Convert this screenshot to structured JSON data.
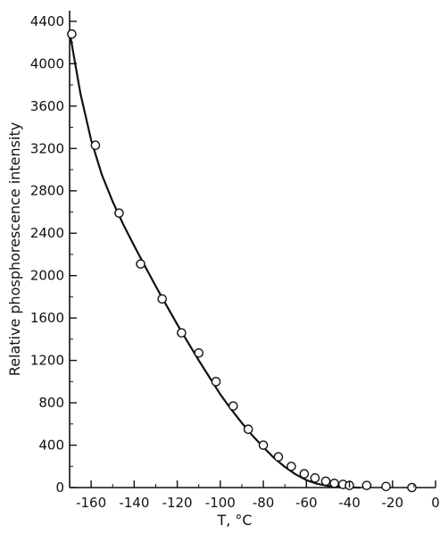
{
  "chart_data": {
    "type": "scatter",
    "title": "",
    "xlabel": "T, °C",
    "ylabel": "Relative phosphorescence intensity",
    "xlim": [
      -170,
      0
    ],
    "ylim": [
      0,
      4500
    ],
    "xticks": [
      -160,
      -140,
      -120,
      -100,
      -80,
      -60,
      -40,
      -20,
      0
    ],
    "xtick_labels": [
      "-160",
      "-140",
      "-120",
      "-100",
      "-80",
      "-60",
      "-40",
      "-20",
      "0"
    ],
    "yticks": [
      0,
      400,
      800,
      1200,
      1600,
      2000,
      2400,
      2800,
      3200,
      3600,
      4000,
      4400
    ],
    "ytick_labels": [
      "0",
      "400",
      "800",
      "1200",
      "1600",
      "2000",
      "2400",
      "2800",
      "3200",
      "3600",
      "4000",
      "4400"
    ],
    "grid": false,
    "series": [
      {
        "marker": "open-circle",
        "x": [
          -169,
          -158,
          -147,
          -137,
          -127,
          -118,
          -110,
          -102,
          -94,
          -87,
          -80,
          -73,
          -67,
          -61,
          -56,
          -51,
          -47,
          -43,
          -40,
          -32,
          -23,
          -11
        ],
        "y": [
          4280,
          3230,
          2590,
          2110,
          1780,
          1460,
          1270,
          1000,
          770,
          550,
          400,
          290,
          200,
          130,
          90,
          60,
          40,
          30,
          20,
          20,
          10,
          0
        ]
      }
    ],
    "fit_curve": {
      "style": "solid",
      "x": [
        -170,
        -165,
        -160,
        -155,
        -150,
        -145,
        -140,
        -135,
        -130,
        -125,
        -120,
        -115,
        -110,
        -105,
        -100,
        -95,
        -90,
        -85,
        -80,
        -75,
        -70,
        -65,
        -60,
        -55,
        -50,
        -45,
        -40,
        -35
      ],
      "y": [
        4300,
        3720,
        3280,
        2950,
        2700,
        2480,
        2280,
        2090,
        1900,
        1720,
        1540,
        1370,
        1200,
        1040,
        880,
        740,
        610,
        490,
        380,
        280,
        195,
        125,
        70,
        35,
        15,
        6,
        2,
        0
      ]
    }
  }
}
